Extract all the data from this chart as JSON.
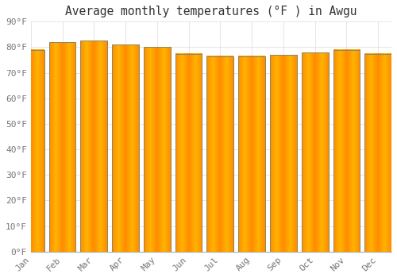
{
  "title": "Average monthly temperatures (°F ) in Awgu",
  "months": [
    "Jan",
    "Feb",
    "Mar",
    "Apr",
    "May",
    "Jun",
    "Jul",
    "Aug",
    "Sep",
    "Oct",
    "Nov",
    "Dec"
  ],
  "values": [
    79,
    82,
    82.5,
    81,
    80,
    77.5,
    76.5,
    76.5,
    77,
    78,
    79,
    77.5
  ],
  "bar_color_center": "#FFB300",
  "bar_color_edge": "#FF8C00",
  "bar_border_color": "#A0522D",
  "background_color": "#FFFFFF",
  "grid_color": "#E0E0E0",
  "ylim": [
    0,
    90
  ],
  "yticks": [
    0,
    10,
    20,
    30,
    40,
    50,
    60,
    70,
    80,
    90
  ],
  "ytick_labels": [
    "0°F",
    "10°F",
    "20°F",
    "30°F",
    "40°F",
    "50°F",
    "60°F",
    "70°F",
    "80°F",
    "90°F"
  ],
  "title_fontsize": 10.5,
  "tick_fontsize": 8,
  "font_family": "monospace",
  "tick_color": "#777777",
  "bar_width": 0.85
}
